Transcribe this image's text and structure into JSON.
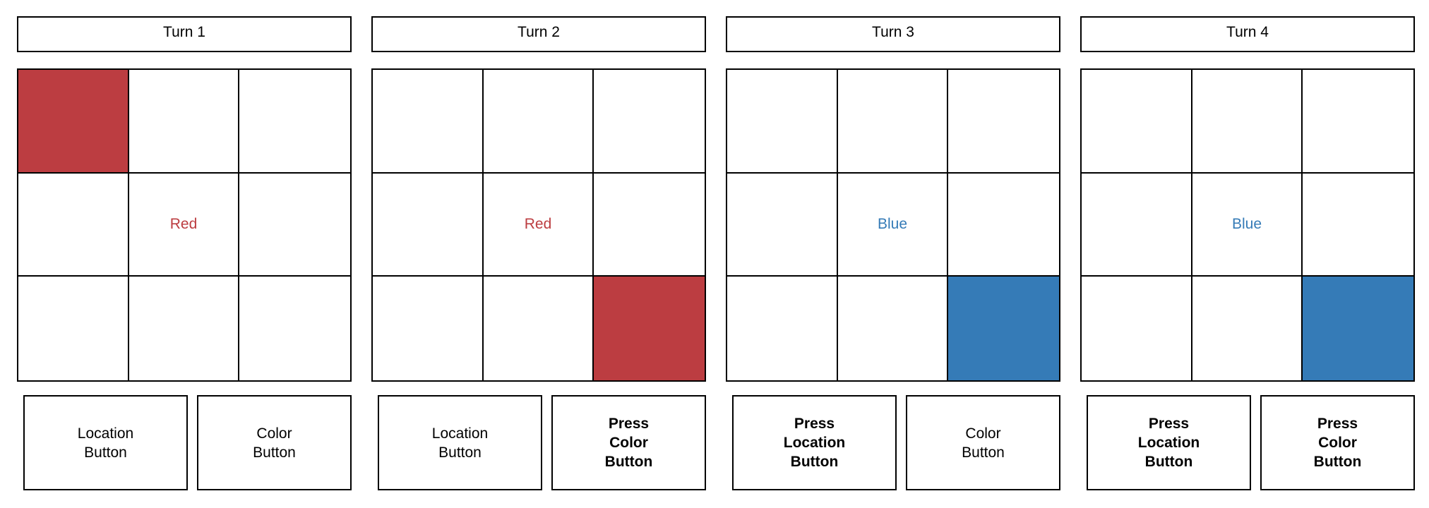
{
  "colors": {
    "red": "#bc3d41",
    "blue": "#357bb7",
    "border": "#000000",
    "background": "#ffffff"
  },
  "turns": [
    {
      "title": "Turn 1",
      "center_label": "Red",
      "center_label_color": "#bc3d41",
      "filled_cell": 0,
      "fill_color": "#bc3d41",
      "location_button": {
        "label": "Location\nButton",
        "pressed": false
      },
      "color_button": {
        "label": "Color\nButton",
        "pressed": false
      }
    },
    {
      "title": "Turn 2",
      "center_label": "Red",
      "center_label_color": "#bc3d41",
      "filled_cell": 8,
      "fill_color": "#bc3d41",
      "location_button": {
        "label": "Location\nButton",
        "pressed": false
      },
      "color_button": {
        "label": "Press\nColor\nButton",
        "pressed": true
      }
    },
    {
      "title": "Turn 3",
      "center_label": "Blue",
      "center_label_color": "#357bb7",
      "filled_cell": 8,
      "fill_color": "#357bb7",
      "location_button": {
        "label": "Press\nLocation\nButton",
        "pressed": true
      },
      "color_button": {
        "label": "Color\nButton",
        "pressed": false
      }
    },
    {
      "title": "Turn 4",
      "center_label": "Blue",
      "center_label_color": "#357bb7",
      "filled_cell": 8,
      "fill_color": "#357bb7",
      "location_button": {
        "label": "Press\nLocation\nButton",
        "pressed": true
      },
      "color_button": {
        "label": "Press\nColor\nButton",
        "pressed": true
      }
    }
  ]
}
